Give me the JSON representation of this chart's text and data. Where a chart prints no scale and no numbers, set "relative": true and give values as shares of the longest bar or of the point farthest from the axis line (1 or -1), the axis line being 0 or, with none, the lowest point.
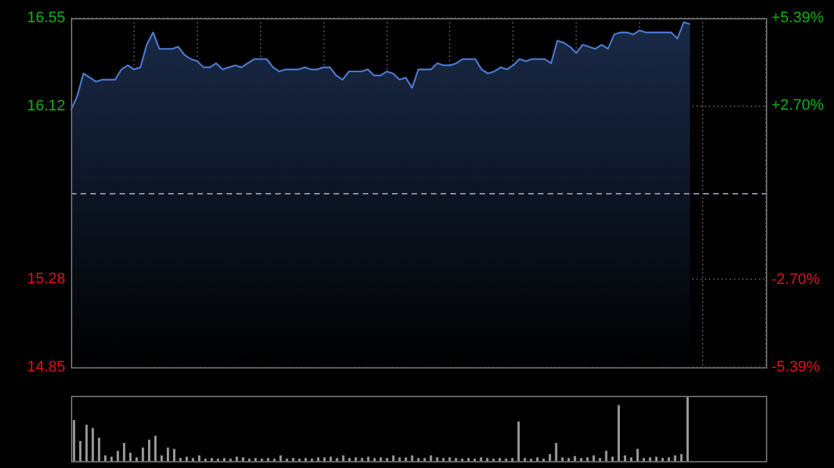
{
  "chart_data": [
    {
      "type": "area",
      "marker": "none",
      "grid": true,
      "tick_labels": "y",
      "categories": [
        null,
        null,
        null,
        null,
        null,
        null,
        null,
        null,
        null,
        null,
        null,
        null,
        null,
        null,
        null,
        null,
        null,
        null,
        null,
        null,
        null,
        null,
        null,
        null,
        null,
        null,
        null,
        null,
        null,
        null,
        null,
        null,
        null,
        null,
        null,
        null,
        null,
        null,
        null,
        null,
        null,
        null,
        null,
        null,
        null,
        null,
        null,
        null,
        null,
        null,
        null,
        null,
        null,
        null,
        null,
        null,
        null,
        null,
        null,
        null,
        null,
        null,
        null,
        null,
        null,
        null,
        null,
        null,
        null,
        null,
        null,
        null,
        null,
        null,
        null,
        null,
        null,
        null,
        null,
        null,
        null,
        null,
        null,
        null,
        null,
        null,
        null,
        null,
        null,
        null,
        null,
        null,
        null,
        null,
        null,
        null,
        null,
        null,
        null,
        null,
        null,
        null,
        null,
        null,
        null,
        null,
        null,
        null,
        null,
        null,
        null
      ],
      "series": [
        {
          "color": "#4a7ad0",
          "values": [
            16.1,
            16.17,
            16.28,
            16.26,
            16.24,
            16.25,
            16.25,
            16.25,
            16.3,
            16.32,
            16.3,
            16.31,
            16.42,
            16.48,
            16.4,
            16.4,
            16.4,
            16.41,
            16.37,
            16.35,
            16.34,
            16.31,
            16.31,
            16.33,
            16.3,
            16.31,
            16.32,
            16.31,
            16.33,
            16.35,
            16.35,
            16.35,
            16.31,
            16.29,
            16.3,
            16.3,
            16.3,
            16.31,
            16.3,
            16.3,
            16.31,
            16.31,
            16.27,
            16.25,
            16.29,
            16.29,
            16.29,
            16.3,
            16.27,
            16.27,
            16.29,
            16.28,
            16.25,
            16.26,
            16.21,
            16.3,
            16.3,
            16.3,
            16.33,
            16.32,
            16.32,
            16.33,
            16.35,
            16.35,
            16.35,
            16.3,
            16.28,
            16.29,
            16.31,
            16.3,
            16.32,
            16.35,
            16.34,
            16.35,
            16.35,
            16.35,
            16.33,
            16.44,
            16.43,
            16.41,
            16.38,
            16.42,
            16.41,
            16.4,
            16.42,
            16.4,
            16.47,
            16.48,
            16.48,
            16.47,
            16.49,
            16.48,
            16.48,
            16.48,
            16.48,
            16.48,
            16.45,
            16.53,
            16.52,
            null,
            null,
            null,
            null,
            null,
            null,
            null,
            null,
            null,
            null,
            null,
            null
          ]
        }
      ],
      "ylim": [
        14.85,
        16.55
      ],
      "yticks": [
        14.85,
        15.28,
        16.12,
        16.55
      ],
      "y2lim": [
        -5.39,
        5.39
      ],
      "y2ticks": [
        {
          "value": -5.39,
          "label": "-5.39%"
        },
        {
          "value": -2.7,
          "label": "-2.70%"
        },
        {
          "value": 2.7,
          "label": "+2.70%"
        },
        {
          "value": 5.39,
          "label": "+5.39%"
        }
      ],
      "ref_lines": [
        {
          "axis": "y",
          "value": 15.7,
          "line_style": "dashed",
          "color": "#8a9aa8"
        }
      ]
    },
    {
      "type": "bar",
      "relative": true,
      "tick_labels": false,
      "categories": [
        null,
        null,
        null,
        null,
        null,
        null,
        null,
        null,
        null,
        null,
        null,
        null,
        null,
        null,
        null,
        null,
        null,
        null,
        null,
        null,
        null,
        null,
        null,
        null,
        null,
        null,
        null,
        null,
        null,
        null,
        null,
        null,
        null,
        null,
        null,
        null,
        null,
        null,
        null,
        null,
        null,
        null,
        null,
        null,
        null,
        null,
        null,
        null,
        null,
        null,
        null,
        null,
        null,
        null,
        null,
        null,
        null,
        null,
        null,
        null,
        null,
        null,
        null,
        null,
        null,
        null,
        null,
        null,
        null,
        null,
        null,
        null,
        null,
        null,
        null,
        null,
        null,
        null,
        null,
        null,
        null,
        null,
        null,
        null,
        null,
        null,
        null,
        null,
        null,
        null,
        null,
        null,
        null,
        null,
        null,
        null,
        null,
        null,
        null,
        null,
        null,
        null,
        null,
        null,
        null,
        null,
        null,
        null,
        null,
        null,
        null
      ],
      "series": [
        {
          "color": "#9a9a9a",
          "values": [
            0.62,
            0.3,
            0.55,
            0.5,
            0.35,
            0.08,
            0.06,
            0.15,
            0.27,
            0.12,
            0.05,
            0.2,
            0.32,
            0.38,
            0.08,
            0.2,
            0.18,
            0.04,
            0.06,
            0.04,
            0.08,
            0.03,
            0.04,
            0.03,
            0.04,
            0.03,
            0.06,
            0.05,
            0.03,
            0.04,
            0.03,
            0.04,
            0.03,
            0.08,
            0.03,
            0.04,
            0.03,
            0.04,
            0.03,
            0.05,
            0.05,
            0.06,
            0.04,
            0.08,
            0.04,
            0.05,
            0.04,
            0.06,
            0.04,
            0.05,
            0.04,
            0.08,
            0.05,
            0.05,
            0.08,
            0.04,
            0.04,
            0.08,
            0.05,
            0.04,
            0.05,
            0.04,
            0.03,
            0.04,
            0.03,
            0.05,
            0.04,
            0.03,
            0.04,
            0.03,
            0.04,
            0.6,
            0.04,
            0.03,
            0.05,
            0.03,
            0.1,
            0.27,
            0.05,
            0.04,
            0.07,
            0.04,
            0.05,
            0.08,
            0.04,
            0.15,
            0.06,
            0.85,
            0.08,
            0.05,
            0.18,
            0.04,
            0.05,
            0.06,
            0.04,
            0.05,
            0.08,
            0.1,
            1,
            null,
            null,
            null,
            null,
            null,
            null,
            null,
            null,
            null,
            null,
            null,
            null
          ]
        }
      ]
    }
  ]
}
